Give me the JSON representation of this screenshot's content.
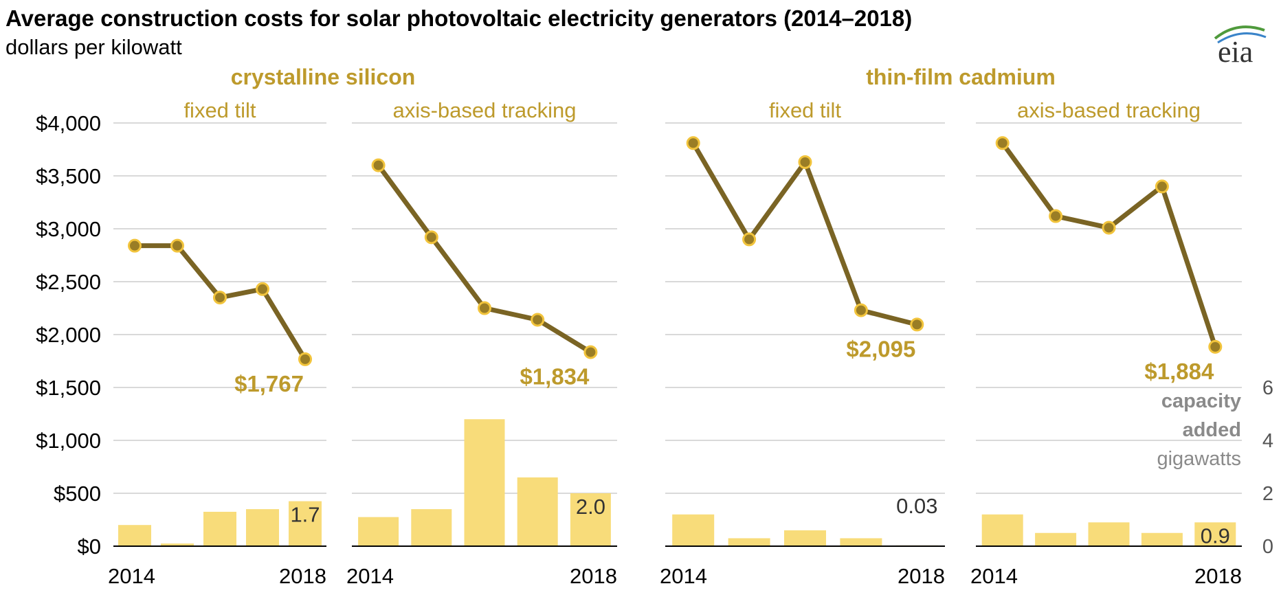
{
  "colors": {
    "line": "#7a6424",
    "marker_fill": "#9a7d25",
    "marker_stroke": "#f2c43c",
    "bar": "#f8dc7a",
    "label_gold": "#bd9a2c",
    "grid": "#d9d9d9",
    "baseline": "#000000",
    "logo_arc_green": "#4f9a3c",
    "logo_arc_blue": "#3a84c9"
  },
  "logo": {
    "text": "eia",
    "icon": "eia-logo-icon"
  },
  "chart_data": {
    "type": "line",
    "title": "Average construction costs for solar photovoltaic electricity generators (2014–2018)",
    "subtitle": "dollars per kilowatt",
    "ylim": [
      0,
      4000
    ],
    "y_ticks": [
      0,
      500,
      1000,
      1500,
      2000,
      2500,
      3000,
      3500,
      4000
    ],
    "y_tick_labels": [
      "$0",
      "$500",
      "$1,000",
      "$1,500",
      "$2,000",
      "$2,500",
      "$3,000",
      "$3,500",
      "$4,000"
    ],
    "y2lim": [
      0,
      6
    ],
    "y2_ticks": [
      0,
      2,
      4,
      6
    ],
    "y2_tick_labels": [
      "0",
      "2",
      "4",
      "6"
    ],
    "y2_label": {
      "line1": "capacity",
      "line2": "added",
      "unit": "gigawatts"
    },
    "grid": true,
    "groups": [
      {
        "name": "crystalline silicon",
        "panels": [
          0,
          1
        ]
      },
      {
        "name": "thin-film cadmium",
        "panels": [
          2,
          3
        ]
      }
    ],
    "x": [
      2014,
      2015,
      2016,
      2017,
      2018
    ],
    "x_tick_labels": [
      "2014",
      "2018"
    ],
    "panels": [
      {
        "title": "fixed tilt",
        "cost": [
          2840,
          2840,
          2350,
          2430,
          1767
        ],
        "cost_label": "$1,767",
        "capacity": [
          0.8,
          0.1,
          1.3,
          1.4,
          1.7
        ],
        "capacity_label": "1.7"
      },
      {
        "title": "axis-based tracking",
        "cost": [
          3600,
          2920,
          2250,
          2140,
          1834
        ],
        "cost_label": "$1,834",
        "capacity": [
          1.1,
          1.4,
          4.8,
          2.6,
          2.0
        ],
        "capacity_label": "2.0"
      },
      {
        "title": "fixed tilt",
        "cost": [
          3810,
          2900,
          3630,
          2230,
          2095
        ],
        "cost_label": "$2,095",
        "capacity": [
          1.2,
          0.3,
          0.6,
          0.3,
          0.03
        ],
        "capacity_label": "0.03"
      },
      {
        "title": "axis-based tracking",
        "cost": [
          3810,
          3120,
          3010,
          3400,
          1884
        ],
        "cost_label": "$1,884",
        "capacity": [
          1.2,
          0.5,
          0.9,
          0.5,
          0.9
        ],
        "capacity_label": "0.9"
      }
    ]
  }
}
